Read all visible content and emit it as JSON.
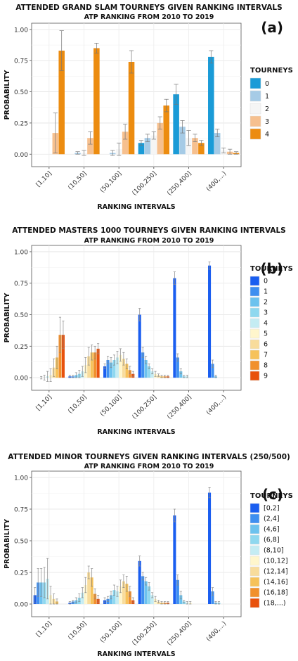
{
  "chart_data": [
    {
      "type": "bar",
      "panel_label": "(a)",
      "title": "ATTENDED GRAND SLAM TOURNEYS GIVEN RANKING INTERVALS",
      "subtitle": "ATP RANKING FROM 2010 TO 2019",
      "xlabel": "RANKING INTERVALS",
      "ylabel": "PROBABILITY",
      "ylim": [
        -0.1,
        1.05
      ],
      "yticks": [
        "0.00",
        "0.25",
        "0.50",
        "0.75",
        "1.00"
      ],
      "grid": true,
      "legend_title": "TOURNEYS",
      "legend_position": "right",
      "categories": [
        "[1,10]",
        "(10,50]",
        "(50,100]",
        "(100,250]",
        "(250,400]",
        "(400,...)"
      ],
      "series": [
        {
          "name": "0",
          "color": "#1a9bd7",
          "values": [
            0,
            0,
            0,
            0.09,
            0.48,
            0.78
          ],
          "errors": [
            0,
            0,
            0,
            0.02,
            0.08,
            0.05
          ]
        },
        {
          "name": "1",
          "color": "#a6cbe6",
          "values": [
            0,
            0.01,
            0.01,
            0.13,
            0.22,
            0.17
          ],
          "errors": [
            0,
            0.01,
            0.02,
            0.03,
            0.05,
            0.03
          ]
        },
        {
          "name": "2",
          "color": "#f5f5f5",
          "values": [
            0,
            0.01,
            0.04,
            0.15,
            0.13,
            0.03
          ],
          "errors": [
            0,
            0.02,
            0.05,
            0.03,
            0.06,
            0.02
          ]
        },
        {
          "name": "3",
          "color": "#f6c08f",
          "values": [
            0.17,
            0.13,
            0.18,
            0.25,
            0.13,
            0.02
          ],
          "errors": [
            0.16,
            0.05,
            0.06,
            0.05,
            0.03,
            0.02
          ]
        },
        {
          "name": "4",
          "color": "#ec8c10",
          "values": [
            0.83,
            0.85,
            0.74,
            0.39,
            0.09,
            0.01
          ],
          "errors": [
            0.16,
            0.04,
            0.09,
            0.05,
            0.02,
            0.01
          ]
        }
      ]
    },
    {
      "type": "bar",
      "panel_label": "(b)",
      "title": "ATTENDED MASTERS 1000 TOURNEYS GIVEN RANKING INTERVALS",
      "subtitle": "ATP RANKING FROM 2010 TO 2019",
      "xlabel": "RANKING INTERVALS",
      "ylabel": "PROBABILITY",
      "ylim": [
        -0.1,
        1.05
      ],
      "yticks": [
        "0.00",
        "0.25",
        "0.50",
        "0.75",
        "1.00"
      ],
      "grid": true,
      "legend_title": "TOURNEYS",
      "legend_position": "right",
      "categories": [
        "[1,10]",
        "(10,50]",
        "(50,100]",
        "(100,250]",
        "(250,400]",
        "(400,...)"
      ],
      "series": [
        {
          "name": "0",
          "color": "#1a5ef0",
          "values": [
            0,
            0.01,
            0.09,
            0.5,
            0.79,
            0.89
          ],
          "errors": [
            0,
            0.01,
            0.02,
            0.05,
            0.05,
            0.03
          ]
        },
        {
          "name": "1",
          "color": "#3e8ff0",
          "values": [
            0,
            0.01,
            0.14,
            0.2,
            0.16,
            0.11
          ],
          "errors": [
            0,
            0.01,
            0.03,
            0.04,
            0.03,
            0.03
          ]
        },
        {
          "name": "2",
          "color": "#6cc2ee",
          "values": [
            0,
            0.02,
            0.12,
            0.14,
            0.05,
            0.01
          ],
          "errors": [
            0.01,
            0.02,
            0.04,
            0.03,
            0.02,
            0.01
          ]
        },
        {
          "name": "3",
          "color": "#8fd8ef",
          "values": [
            0,
            0.03,
            0.14,
            0.09,
            0.01,
            0
          ],
          "errors": [
            0.02,
            0.03,
            0.04,
            0.02,
            0.01,
            0
          ]
        },
        {
          "name": "4",
          "color": "#c4ecf3",
          "values": [
            0.01,
            0.05,
            0.16,
            0.05,
            0.01,
            0
          ],
          "errors": [
            0.04,
            0.04,
            0.05,
            0.02,
            0.01,
            0
          ]
        },
        {
          "name": "5",
          "color": "#fff6cc",
          "values": [
            0.02,
            0.1,
            0.18,
            0.03,
            0,
            0
          ],
          "errors": [
            0.05,
            0.06,
            0.05,
            0.02,
            0,
            0
          ]
        },
        {
          "name": "6",
          "color": "#f8dc9c",
          "values": [
            0.08,
            0.17,
            0.15,
            0.02,
            0,
            0
          ],
          "errors": [
            0.07,
            0.07,
            0.05,
            0.01,
            0,
            0
          ]
        },
        {
          "name": "7",
          "color": "#f6c25a",
          "values": [
            0.16,
            0.2,
            0.11,
            0.01,
            0,
            0
          ],
          "errors": [
            0.09,
            0.06,
            0.04,
            0.01,
            0,
            0
          ]
        },
        {
          "name": "8",
          "color": "#f1902c",
          "values": [
            0.34,
            0.2,
            0.06,
            0.01,
            0,
            0
          ],
          "errors": [
            0.14,
            0.05,
            0.03,
            0.01,
            0,
            0
          ]
        },
        {
          "name": "9",
          "color": "#e8510c",
          "values": [
            0.34,
            0.23,
            0.03,
            0.01,
            0,
            0
          ],
          "errors": [
            0.11,
            0.04,
            0.02,
            0.01,
            0,
            0
          ]
        }
      ]
    },
    {
      "type": "bar",
      "panel_label": "(c)",
      "title": "ATTENDED MINOR TOURNEYS GIVEN RANKING INTERVALS (250/500)",
      "subtitle": "ATP RANKING FROM 2010 TO 2019",
      "xlabel": "RANKING INTERVALS",
      "ylabel": "PROBABILITY",
      "ylim": [
        -0.1,
        1.05
      ],
      "yticks": [
        "0.00",
        "0.25",
        "0.50",
        "0.75",
        "1.00"
      ],
      "grid": true,
      "legend_title": "TOURNEYS",
      "legend_position": "right",
      "categories": [
        "[1,10]",
        "(10,50]",
        "(50,100]",
        "(100,250]",
        "(250,400]",
        "(400,...)"
      ],
      "series": [
        {
          "name": "[0,2]",
          "color": "#1a5ef0",
          "values": [
            0.07,
            0.01,
            0.03,
            0.34,
            0.7,
            0.88
          ],
          "errors": [
            0.06,
            0.01,
            0.02,
            0.04,
            0.05,
            0.04
          ]
        },
        {
          "name": "(2,4]",
          "color": "#3e8ff0",
          "values": [
            0.17,
            0.02,
            0.04,
            0.22,
            0.19,
            0.1
          ],
          "errors": [
            0.11,
            0.01,
            0.02,
            0.03,
            0.04,
            0.03
          ]
        },
        {
          "name": "(4,6]",
          "color": "#6cc2ee",
          "values": [
            0.17,
            0.03,
            0.07,
            0.18,
            0.07,
            0.01
          ],
          "errors": [
            0.11,
            0.02,
            0.03,
            0.03,
            0.03,
            0.01
          ]
        },
        {
          "name": "(6,8]",
          "color": "#8fd8ef",
          "values": [
            0.17,
            0.05,
            0.11,
            0.14,
            0.02,
            0.01
          ],
          "errors": [
            0.12,
            0.03,
            0.04,
            0.03,
            0.01,
            0.01
          ]
        },
        {
          "name": "(8,10]",
          "color": "#c4ecf3",
          "values": [
            0.2,
            0.09,
            0.1,
            0.07,
            0.01,
            0
          ],
          "errors": [
            0.16,
            0.04,
            0.04,
            0.02,
            0.01,
            0
          ]
        },
        {
          "name": "(10,12]",
          "color": "#fff6cc",
          "values": [
            0.07,
            0.15,
            0.14,
            0.04,
            0.01,
            0
          ],
          "errors": [
            0.07,
            0.06,
            0.05,
            0.02,
            0.01,
            0
          ]
        },
        {
          "name": "(12,14]",
          "color": "#f8dc9c",
          "values": [
            0.04,
            0.25,
            0.18,
            0.02,
            0,
            0
          ],
          "errors": [
            0.04,
            0.05,
            0.05,
            0.01,
            0,
            0
          ]
        },
        {
          "name": "(14,16]",
          "color": "#f6c25a",
          "values": [
            0.02,
            0.21,
            0.16,
            0.01,
            0,
            0
          ],
          "errors": [
            0.02,
            0.07,
            0.06,
            0.01,
            0,
            0
          ]
        },
        {
          "name": "(16,18]",
          "color": "#f1902c",
          "values": [
            0,
            0.08,
            0.1,
            0.01,
            0,
            0
          ],
          "errors": [
            0,
            0.04,
            0.04,
            0.01,
            0,
            0
          ]
        },
        {
          "name": "(18,...)",
          "color": "#e8510c",
          "values": [
            0,
            0.04,
            0.03,
            0.01,
            0,
            0
          ],
          "errors": [
            0,
            0.03,
            0.02,
            0.01,
            0,
            0
          ]
        }
      ]
    }
  ]
}
